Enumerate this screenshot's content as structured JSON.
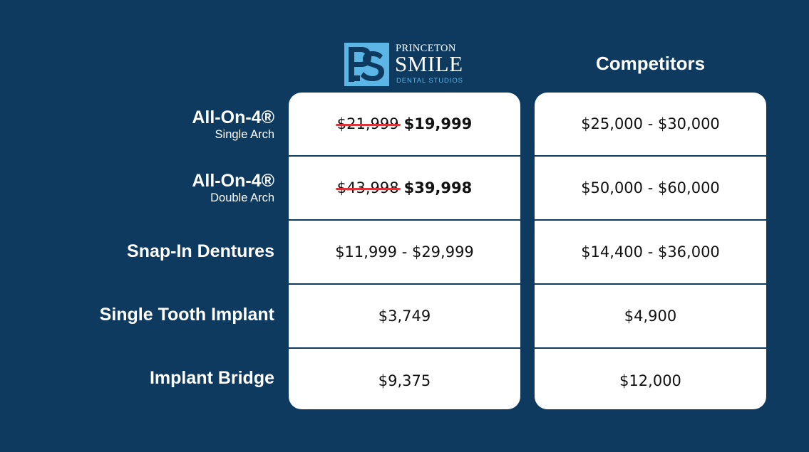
{
  "logo": {
    "top_text": "PRINCETON",
    "main_text": "SMILE",
    "sub_text": "DENTAL STUDIOS",
    "brand_color": "#5bb6e6"
  },
  "competitors_header": "Competitors",
  "rows": [
    {
      "label": "All-On-4®",
      "sublabel": "Single Arch",
      "ps_old_price": "$21,999",
      "ps_price": "$19,999",
      "competitor_price": "$25,000 - $30,000"
    },
    {
      "label": "All-On-4®",
      "sublabel": "Double Arch",
      "ps_old_price": "$43,998",
      "ps_price": "$39,998",
      "competitor_price": "$50,000 - $60,000"
    },
    {
      "label": "Snap-In Dentures",
      "sublabel": "",
      "ps_price": "$11,999 - $29,999",
      "competitor_price": "$14,400 - $36,000"
    },
    {
      "label": "Single Tooth Implant",
      "sublabel": "",
      "ps_price": "$3,749",
      "competitor_price": "$4,900"
    },
    {
      "label": "Implant Bridge",
      "sublabel": "",
      "ps_price": "$9,375",
      "competitor_price": "$12,000"
    }
  ],
  "colors": {
    "background": "#0d3a5e",
    "card": "#ffffff",
    "strikethrough": "#d9353b"
  }
}
